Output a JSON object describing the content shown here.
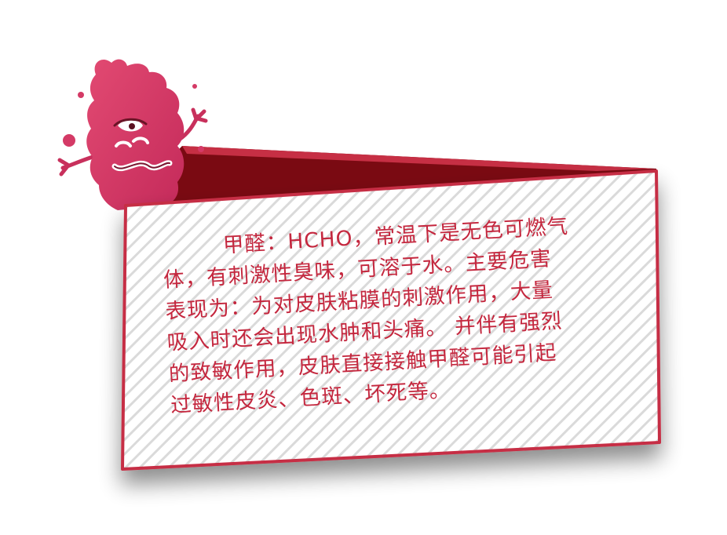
{
  "card": {
    "lines": [
      "甲醛：HCHO，常温下是无色可燃气",
      "体，有刺激性臭味，可溶于水。主要危害",
      "表现为：为对皮肤粘膜的刺激作用，大量",
      "吸入时还会出现水肿和头痛。 并伴有强烈",
      "的致敏作用，皮肤直接接触甲醛可能引起",
      "过敏性皮炎、色斑、坏死等。"
    ]
  },
  "colors": {
    "text": "#c4273e",
    "card_border": "#c62f44",
    "card_back": "#7a0a12",
    "stripe": "#d6d6d6",
    "monster": "#d43a66"
  },
  "icons": {
    "monster": "germ-monster-icon"
  }
}
